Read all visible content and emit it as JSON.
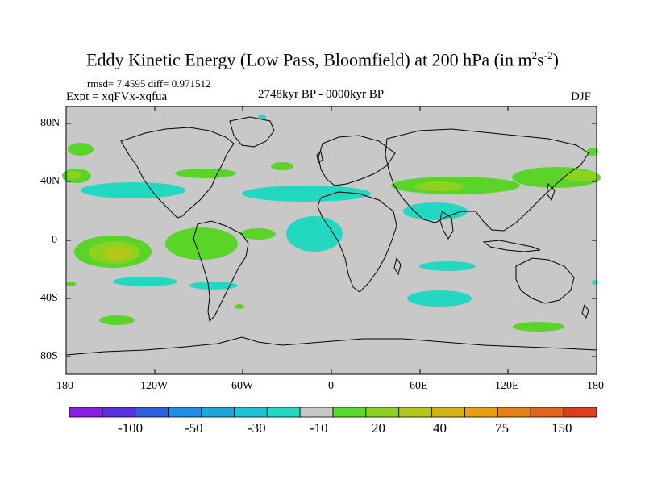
{
  "title": {
    "main": "Eddy Kinetic Energy (Low Pass, Bloomfield) at 200 hPa (in m",
    "sup1": "2",
    "mid": "s",
    "sup2": "-2",
    "end": ")"
  },
  "stats": "rmsd= 7.4595 diff= 0.971512",
  "expt": "Expt = xqFVx-xqfua",
  "period": "2748kyr BP - 0000kyr BP",
  "season": "DJF",
  "lat_labels": [
    "80N",
    "40N",
    "0",
    "40S",
    "80S"
  ],
  "lon_labels": [
    "180",
    "120W",
    "60W",
    "0",
    "60E",
    "120E",
    "180"
  ],
  "colorbar": {
    "colors": [
      "#8a1ee6",
      "#5a2fe0",
      "#2f5fe0",
      "#1e8fe6",
      "#1aa8df",
      "#1ec3d8",
      "#22d8c0",
      "#c8c8c8",
      "#5ada28",
      "#8cd21e",
      "#b4c81a",
      "#d2b414",
      "#e6a012",
      "#e68214",
      "#e6641a",
      "#e03c1e"
    ],
    "labels": [
      "-100",
      "-50",
      "-30",
      "-10",
      "20",
      "40",
      "75",
      "150"
    ]
  },
  "colors": {
    "land_sea_background": "#c8c8c8",
    "green": "#5ad428",
    "lightgreen": "#8cd21e",
    "yellowgreen": "#b4c81a",
    "cyan": "#22d8c0"
  }
}
